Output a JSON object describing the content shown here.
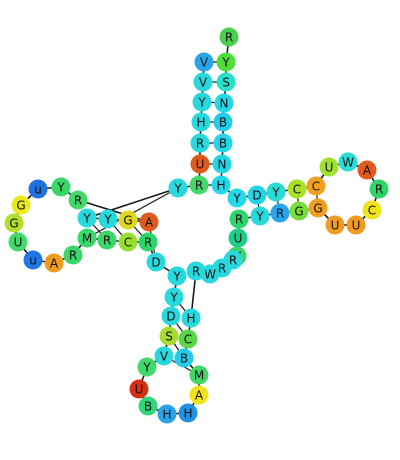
{
  "structure": {
    "nucleotides": [
      {
        "letter": "R",
        "color": "#4ad04a"
      },
      {
        "letter": "Y",
        "color": "#50dd3c"
      },
      {
        "letter": "S",
        "color": "#28e0c8"
      },
      {
        "letter": "N",
        "color": "#24d8e8"
      },
      {
        "letter": "B",
        "color": "#22cce8"
      },
      {
        "letter": "B",
        "color": "#24d4e8"
      },
      {
        "letter": "N",
        "color": "#22d6e8"
      },
      {
        "letter": "H",
        "color": "#22d8ea"
      },
      {
        "letter": "Y",
        "color": "#26d8e6"
      },
      {
        "letter": "D",
        "color": "#22d4e8"
      },
      {
        "letter": "Y",
        "color": "#28dcd4"
      },
      {
        "letter": "C",
        "color": "#a8e02a"
      },
      {
        "letter": "C",
        "color": "#f2a020"
      },
      {
        "letter": "U",
        "color": "#a0e030"
      },
      {
        "letter": "W",
        "color": "#2adcd4"
      },
      {
        "letter": "A",
        "color": "#e05a1e"
      },
      {
        "letter": "R",
        "color": "#30d468"
      },
      {
        "letter": "C",
        "color": "#f2e21a"
      },
      {
        "letter": "U",
        "color": "#f09a20"
      },
      {
        "letter": "U",
        "color": "#f09a20"
      },
      {
        "letter": "G",
        "color": "#f0a020"
      },
      {
        "letter": "G",
        "color": "#78dc3a"
      },
      {
        "letter": "R",
        "color": "#2aa4e8"
      },
      {
        "letter": "Y",
        "color": "#28d8dc"
      },
      {
        "letter": "R",
        "color": "#30d46c"
      },
      {
        "letter": "U",
        "color": "#20cc88"
      },
      {
        "letter": "V",
        "color": "#3ad86a"
      },
      {
        "letter": "R",
        "color": "#28d8dc"
      },
      {
        "letter": "R",
        "color": "#28d8dc"
      },
      {
        "letter": "W",
        "color": "#28d8dc"
      },
      {
        "letter": "R",
        "color": "#28d8dc"
      },
      {
        "letter": "H",
        "color": "#28d8dc"
      },
      {
        "letter": "C",
        "color": "#5cd44a"
      },
      {
        "letter": "B",
        "color": "#22cce8"
      },
      {
        "letter": "M",
        "color": "#42d668"
      },
      {
        "letter": "A",
        "color": "#f2e21a"
      },
      {
        "letter": "H",
        "color": "#2090e0"
      },
      {
        "letter": "H",
        "color": "#2aa4e8"
      },
      {
        "letter": "B",
        "color": "#30d67a"
      },
      {
        "letter": "U",
        "color": "#d63014"
      },
      {
        "letter": "Y",
        "color": "#42d86c"
      },
      {
        "letter": "V",
        "color": "#28d8dc"
      },
      {
        "letter": "S",
        "color": "#a4dc30"
      },
      {
        "letter": "D",
        "color": "#28d8dc"
      },
      {
        "letter": "Y",
        "color": "#28d8dc"
      },
      {
        "letter": "Y",
        "color": "#28d8dc"
      },
      {
        "letter": "D",
        "color": "#28d8dc"
      },
      {
        "letter": "R",
        "color": "#2cd46c"
      },
      {
        "letter": "C",
        "color": "#98e030"
      },
      {
        "letter": "R",
        "color": "#3ad868"
      },
      {
        "letter": "M",
        "color": "#38d86c"
      },
      {
        "letter": "R",
        "color": "#3ad868"
      },
      {
        "letter": "A",
        "color": "#f09a20"
      },
      {
        "letter": "u",
        "color": "#2078e0"
      },
      {
        "letter": "U",
        "color": "#42d86c"
      },
      {
        "letter": "G",
        "color": "#b0e02a"
      },
      {
        "letter": "G",
        "color": "#eaea1c"
      },
      {
        "letter": "u",
        "color": "#2070e0"
      },
      {
        "letter": "Y",
        "color": "#3ad868"
      },
      {
        "letter": "R",
        "color": "#44d86a"
      },
      {
        "letter": "A",
        "color": "#e05a1e"
      },
      {
        "letter": "G",
        "color": "#e0d820"
      },
      {
        "letter": "Y",
        "color": "#28d8dc"
      },
      {
        "letter": "Y",
        "color": "#28d8dc"
      },
      {
        "letter": "Y",
        "color": "#28d8dc"
      },
      {
        "letter": "R",
        "color": "#44d86a"
      },
      {
        "letter": "U",
        "color": "#e05a1e"
      },
      {
        "letter": "R",
        "color": "#28d8dc"
      },
      {
        "letter": "H",
        "color": "#28d8dc"
      },
      {
        "letter": "Y",
        "color": "#28d8dc"
      },
      {
        "letter": "V",
        "color": "#28d8dc"
      },
      {
        "letter": "V",
        "color": "#2aa4e8"
      },
      {
        "letter": "S",
        "color": "#28d8dc"
      },
      {
        "letter": "S",
        "color": "#28d8dc"
      },
      {
        "letter": "G",
        "color": "#80dc3a"
      }
    ]
  }
}
